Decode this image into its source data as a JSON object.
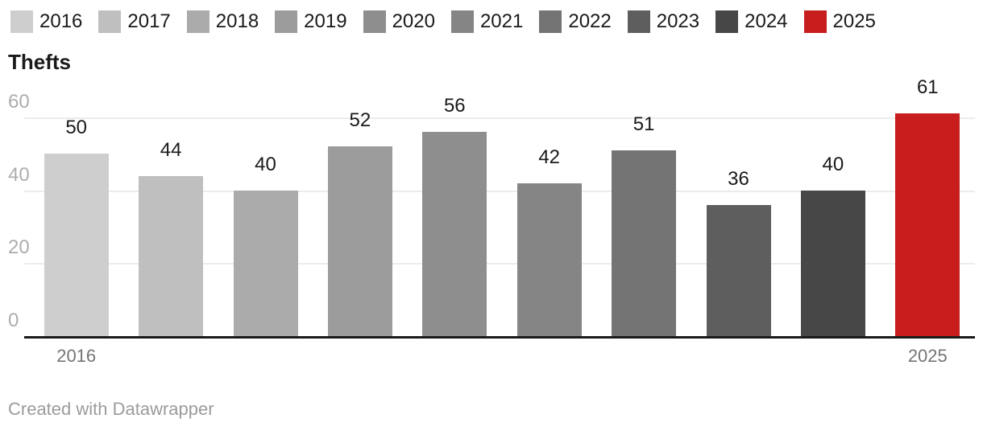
{
  "title": "Thefts",
  "footer": {
    "credit": "Created with Datawrapper"
  },
  "legend": {
    "position": "top",
    "items": [
      {
        "label": "2016",
        "color": "#cecece"
      },
      {
        "label": "2017",
        "color": "#bfbfbf"
      },
      {
        "label": "2018",
        "color": "#ababab"
      },
      {
        "label": "2019",
        "color": "#9c9c9c"
      },
      {
        "label": "2020",
        "color": "#8e8e8e"
      },
      {
        "label": "2021",
        "color": "#858585"
      },
      {
        "label": "2022",
        "color": "#747474"
      },
      {
        "label": "2023",
        "color": "#5e5e5e"
      },
      {
        "label": "2024",
        "color": "#474747"
      },
      {
        "label": "2025",
        "color": "#c71e1d"
      }
    ]
  },
  "chart_data": {
    "type": "bar",
    "title": "Thefts",
    "categories": [
      "2016",
      "2017",
      "2018",
      "2019",
      "2020",
      "2021",
      "2022",
      "2023",
      "2024",
      "2025"
    ],
    "values": [
      50,
      44,
      40,
      52,
      56,
      42,
      51,
      36,
      40,
      61
    ],
    "bar_colors": [
      "#cecece",
      "#bfbfbf",
      "#ababab",
      "#9c9c9c",
      "#8e8e8e",
      "#858585",
      "#747474",
      "#5e5e5e",
      "#474747",
      "#c71e1d"
    ],
    "xlabel": "",
    "ylabel": "",
    "ylim": [
      0,
      62
    ],
    "yticks": [
      0,
      20,
      40,
      60
    ],
    "x_axis_labels_shown": [
      "2016",
      "2025"
    ],
    "grid": true,
    "legend_position": "top",
    "value_labels": true,
    "accent_color": "#c71e1d",
    "highlight_category": "2025"
  }
}
